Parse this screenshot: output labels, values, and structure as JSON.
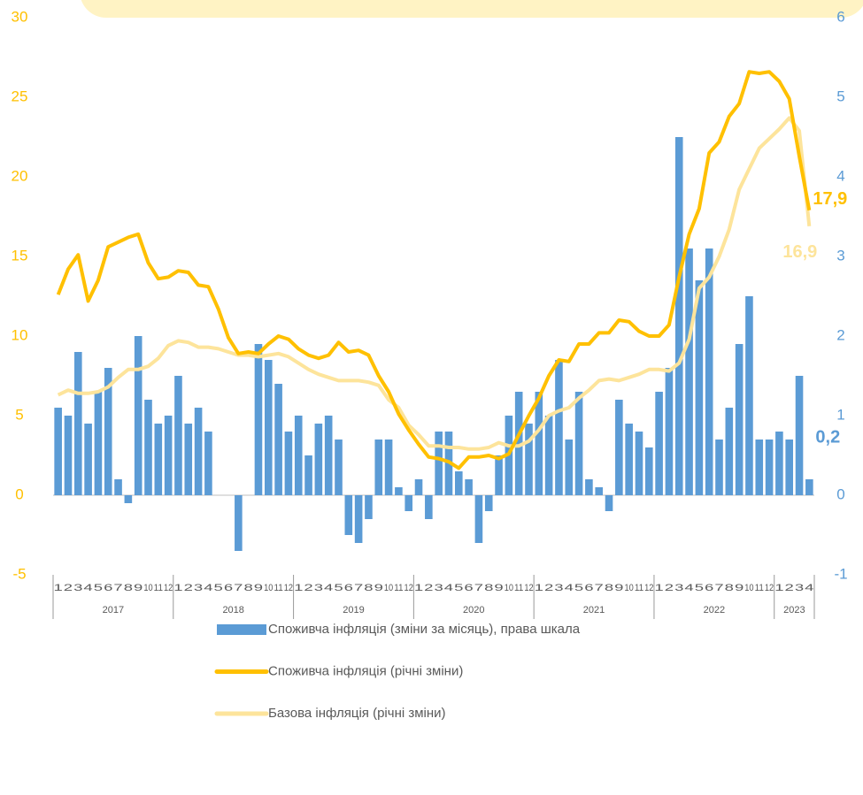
{
  "chart_data": {
    "type": "bar_line",
    "categories": [
      "1",
      "2",
      "3",
      "4",
      "5",
      "6",
      "7",
      "8",
      "9",
      "10",
      "11",
      "12",
      "1",
      "2",
      "3",
      "4",
      "5",
      "6",
      "7",
      "8",
      "9",
      "10",
      "11",
      "12",
      "1",
      "2",
      "3",
      "4",
      "5",
      "6",
      "7",
      "8",
      "9",
      "10",
      "11",
      "12",
      "1",
      "2",
      "3",
      "4",
      "5",
      "6",
      "7",
      "8",
      "9",
      "10",
      "11",
      "12",
      "1",
      "2",
      "3",
      "4",
      "5",
      "6",
      "7",
      "8",
      "9",
      "10",
      "11",
      "12",
      "1",
      "2",
      "3",
      "4",
      "5",
      "6",
      "7",
      "8",
      "9",
      "10",
      "11",
      "12",
      "1",
      "2",
      "3",
      "4"
    ],
    "year_labels": [
      "2017",
      "2018",
      "2019",
      "2020",
      "2021",
      "2022",
      "2023"
    ],
    "ylim": [
      -5,
      30
    ],
    "yticks": [
      -5,
      0,
      5,
      10,
      15,
      20,
      25,
      30
    ],
    "y2lim": [
      -1,
      6
    ],
    "y2ticks": [
      -1,
      0,
      1,
      2,
      3,
      4,
      5,
      6
    ],
    "series": [
      {
        "name": "Споживча інфляція (зміни за місяць), права шкала",
        "type": "bar",
        "axis": "y2",
        "color": "#5b9bd5",
        "values": [
          1.1,
          1.0,
          1.8,
          0.9,
          1.3,
          1.6,
          0.2,
          -0.1,
          2.0,
          1.2,
          0.9,
          1.0,
          1.5,
          0.9,
          1.1,
          0.8,
          0.0,
          0.0,
          -0.7,
          0.0,
          1.9,
          1.7,
          1.4,
          0.8,
          1.0,
          0.5,
          0.9,
          1.0,
          0.7,
          -0.5,
          -0.6,
          -0.3,
          0.7,
          0.7,
          0.1,
          -0.2,
          0.2,
          -0.3,
          0.8,
          0.8,
          0.3,
          0.2,
          -0.6,
          -0.2,
          0.5,
          1.0,
          1.3,
          0.9,
          1.3,
          1.0,
          1.7,
          0.7,
          1.3,
          0.2,
          0.1,
          -0.2,
          1.2,
          0.9,
          0.8,
          0.6,
          1.3,
          1.6,
          4.5,
          3.1,
          2.7,
          3.1,
          0.7,
          1.1,
          1.9,
          2.5,
          0.7,
          0.7,
          0.8,
          0.7,
          1.5,
          0.2
        ],
        "value_labels": [
          null,
          null,
          null,
          null,
          null,
          null,
          null,
          null,
          null,
          null,
          null,
          null,
          null,
          null,
          null,
          null,
          null,
          null,
          null,
          null,
          null,
          null,
          null,
          null,
          null,
          null,
          null,
          null,
          null,
          null,
          null,
          null,
          null,
          null,
          null,
          null,
          null,
          null,
          null,
          null,
          null,
          null,
          null,
          null,
          null,
          null,
          null,
          null,
          null,
          null,
          null,
          null,
          null,
          null,
          null,
          null,
          null,
          null,
          null,
          null,
          null,
          null,
          null,
          null,
          null,
          null,
          null,
          null,
          null,
          null,
          null,
          null,
          null,
          null,
          null,
          "0,2"
        ]
      },
      {
        "name": "Споживча інфляція (річні зміни)",
        "type": "line",
        "color": "#ffc000",
        "values": [
          12.6,
          14.2,
          15.1,
          12.2,
          13.5,
          15.6,
          15.9,
          16.2,
          16.4,
          14.6,
          13.6,
          13.7,
          14.1,
          14.0,
          13.2,
          13.1,
          11.7,
          9.9,
          8.9,
          9.0,
          8.9,
          9.5,
          10.0,
          9.8,
          9.2,
          8.8,
          8.6,
          8.8,
          9.6,
          9.0,
          9.1,
          8.8,
          7.5,
          6.5,
          5.1,
          4.1,
          3.2,
          2.4,
          2.3,
          2.1,
          1.7,
          2.4,
          2.4,
          2.5,
          2.3,
          2.6,
          3.8,
          5.0,
          6.1,
          7.5,
          8.5,
          8.4,
          9.5,
          9.5,
          10.2,
          10.2,
          11.0,
          10.9,
          10.3,
          10.0,
          10.0,
          10.7,
          13.7,
          16.4,
          18.0,
          21.5,
          22.2,
          23.8,
          24.6,
          26.6,
          26.5,
          26.6,
          26.0,
          24.9,
          21.3,
          17.9
        ],
        "value_labels": [
          null,
          null,
          null,
          null,
          null,
          null,
          null,
          null,
          null,
          null,
          null,
          null,
          null,
          null,
          null,
          null,
          null,
          null,
          null,
          null,
          null,
          null,
          null,
          null,
          null,
          null,
          null,
          null,
          null,
          null,
          null,
          null,
          null,
          null,
          null,
          null,
          null,
          null,
          null,
          null,
          null,
          null,
          null,
          null,
          null,
          null,
          null,
          null,
          null,
          null,
          null,
          null,
          null,
          null,
          null,
          null,
          null,
          null,
          null,
          null,
          null,
          null,
          null,
          null,
          null,
          null,
          null,
          null,
          null,
          null,
          null,
          null,
          null,
          null,
          null,
          "17,9"
        ]
      },
      {
        "name": "Базова інфляція (річні зміни)",
        "type": "line",
        "color": "#fde49b",
        "values": [
          6.3,
          6.6,
          6.4,
          6.4,
          6.5,
          6.8,
          7.4,
          7.9,
          7.9,
          8.1,
          8.6,
          9.4,
          9.7,
          9.6,
          9.3,
          9.3,
          9.2,
          9.0,
          8.8,
          8.8,
          8.7,
          8.8,
          8.9,
          8.7,
          8.3,
          7.9,
          7.6,
          7.4,
          7.2,
          7.2,
          7.2,
          7.1,
          6.9,
          6.0,
          5.5,
          4.4,
          3.8,
          3.1,
          3.1,
          3.0,
          3.0,
          2.9,
          2.9,
          3.0,
          3.3,
          3.1,
          3.1,
          3.4,
          4.1,
          5.0,
          5.3,
          5.5,
          6.1,
          6.6,
          7.2,
          7.3,
          7.2,
          7.4,
          7.6,
          7.9,
          7.9,
          7.8,
          8.3,
          9.8,
          13.0,
          13.7,
          15.0,
          16.7,
          19.2,
          20.5,
          21.8,
          22.4,
          23.0,
          23.7,
          22.9,
          16.9
        ],
        "value_labels": [
          null,
          null,
          null,
          null,
          null,
          null,
          null,
          null,
          null,
          null,
          null,
          null,
          null,
          null,
          null,
          null,
          null,
          null,
          null,
          null,
          null,
          null,
          null,
          null,
          null,
          null,
          null,
          null,
          null,
          null,
          null,
          null,
          null,
          null,
          null,
          null,
          null,
          null,
          null,
          null,
          null,
          null,
          null,
          null,
          null,
          null,
          null,
          null,
          null,
          null,
          null,
          null,
          null,
          null,
          null,
          null,
          null,
          null,
          null,
          null,
          null,
          null,
          null,
          null,
          null,
          null,
          null,
          null,
          null,
          null,
          null,
          null,
          null,
          null,
          null,
          "16,9"
        ]
      }
    ]
  }
}
